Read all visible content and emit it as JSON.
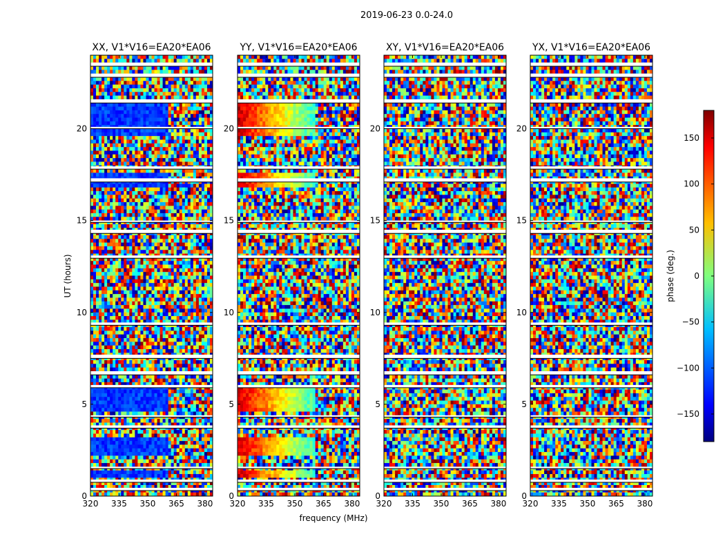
{
  "figure_title": "2019-06-23 0.0-24.0",
  "chart_data": {
    "type": "heatmap",
    "title": "2019-06-23 0.0-24.0",
    "xlabel": "frequency (MHz)",
    "ylabel": "UT (hours)",
    "xlim": [
      320,
      384
    ],
    "ylim": [
      0,
      24
    ],
    "x_ticks": [
      320,
      335,
      350,
      365,
      380
    ],
    "y_ticks": [
      0,
      5,
      10,
      15,
      20
    ],
    "colorbar": {
      "label": "phase (deg.)",
      "range": [
        -180,
        180
      ],
      "ticks": [
        -150,
        -100,
        -50,
        0,
        50,
        100,
        150
      ],
      "ticks_labels": [
        "−150",
        "−100",
        "−50",
        "0",
        "50",
        "100",
        "150"
      ],
      "colormap": [
        "#00007f",
        "#0000ff",
        "#007fff",
        "#00ffff",
        "#7fff7f",
        "#ffff00",
        "#ff7f00",
        "#ff0000",
        "#7f0000"
      ]
    },
    "panels": [
      {
        "title": "XX, V1*V16=EA20*EA06",
        "pattern": "coherent-blue"
      },
      {
        "title": "YY, V1*V16=EA20*EA06",
        "pattern": "coherent-gradient"
      },
      {
        "title": "XY, V1*V16=EA20*EA06",
        "pattern": "noise"
      },
      {
        "title": "YX, V1*V16=EA20*EA06",
        "pattern": "noise"
      }
    ],
    "flagged_bands_ut": [
      [
        0.3,
        0.45
      ],
      [
        0.75,
        0.9
      ],
      [
        1.5,
        1.6
      ],
      [
        3.7,
        3.85
      ],
      [
        4.3,
        4.4
      ],
      [
        5.9,
        6.05
      ],
      [
        6.6,
        6.8
      ],
      [
        7.5,
        7.7
      ],
      [
        9.3,
        9.45
      ],
      [
        12.95,
        13.1
      ],
      [
        14.3,
        14.5
      ],
      [
        14.9,
        15.0
      ],
      [
        17.1,
        17.3
      ],
      [
        17.8,
        17.95
      ],
      [
        20.0,
        20.1
      ],
      [
        21.4,
        21.6
      ],
      [
        22.8,
        23.0
      ],
      [
        23.4,
        23.6
      ]
    ]
  }
}
